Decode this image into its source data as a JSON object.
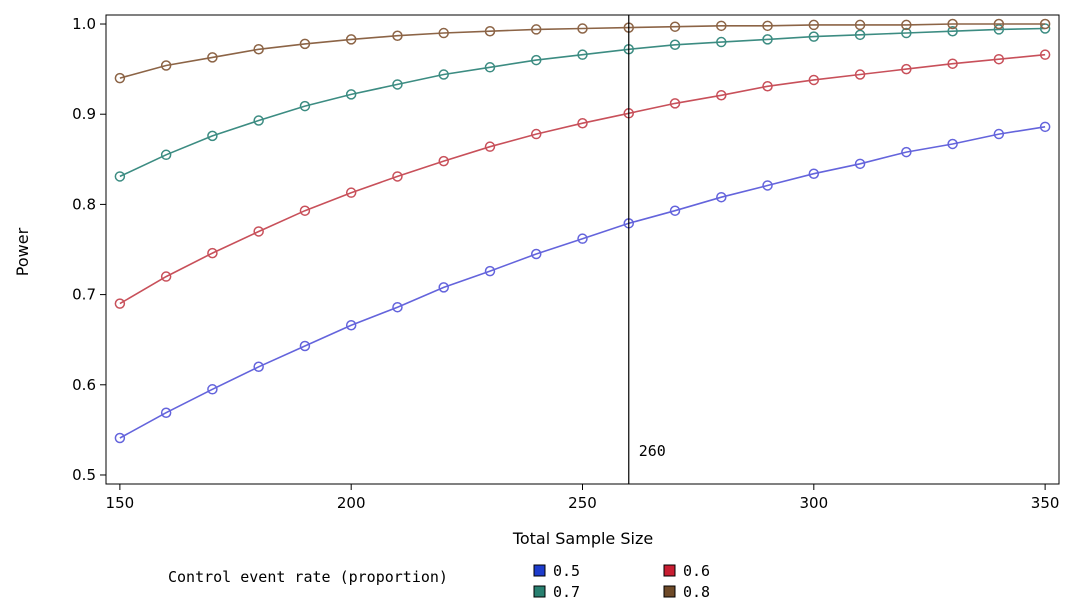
{
  "chart_data": {
    "type": "line",
    "xlabel": "Total Sample Size",
    "ylabel": "Power",
    "xlim": [
      147,
      353
    ],
    "ylim": [
      0.49,
      1.01
    ],
    "xticks": [
      150,
      200,
      250,
      300,
      350
    ],
    "xtick_labels": [
      "150",
      "200",
      "250",
      "300",
      "350"
    ],
    "yticks": [
      0.5,
      0.6,
      0.7,
      0.8,
      0.9,
      1.0
    ],
    "ytick_labels": [
      "0.5",
      "0.6",
      "0.7",
      "0.8",
      "0.9",
      "1.0"
    ],
    "grid": false,
    "legend": {
      "title": "Control event rate (proportion)",
      "placement": "bottom"
    },
    "reference_line": {
      "x": 260,
      "label": "260"
    },
    "x": [
      150,
      160,
      170,
      180,
      190,
      200,
      210,
      220,
      230,
      240,
      250,
      260,
      270,
      280,
      290,
      300,
      310,
      320,
      330,
      340,
      350
    ],
    "series": [
      {
        "name": "0.5",
        "color": "#6464dc",
        "swatch": "#1e3ccc",
        "values": [
          0.541,
          0.569,
          0.595,
          0.62,
          0.643,
          0.666,
          0.686,
          0.708,
          0.726,
          0.745,
          0.762,
          0.779,
          0.793,
          0.808,
          0.821,
          0.834,
          0.845,
          0.858,
          0.867,
          0.878,
          0.886
        ]
      },
      {
        "name": "0.6",
        "color": "#c8505a",
        "swatch": "#c81e32",
        "values": [
          0.69,
          0.72,
          0.746,
          0.77,
          0.793,
          0.813,
          0.831,
          0.848,
          0.864,
          0.878,
          0.89,
          0.901,
          0.912,
          0.921,
          0.931,
          0.938,
          0.944,
          0.95,
          0.956,
          0.961,
          0.966
        ]
      },
      {
        "name": "0.7",
        "color": "#3c8c82",
        "swatch": "#288070",
        "values": [
          0.831,
          0.855,
          0.876,
          0.893,
          0.909,
          0.922,
          0.933,
          0.944,
          0.952,
          0.96,
          0.966,
          0.972,
          0.977,
          0.98,
          0.983,
          0.986,
          0.988,
          0.99,
          0.992,
          0.994,
          0.995
        ]
      },
      {
        "name": "0.8",
        "color": "#8c6446",
        "swatch": "#6e4a28",
        "values": [
          0.94,
          0.954,
          0.963,
          0.972,
          0.978,
          0.983,
          0.987,
          0.99,
          0.992,
          0.994,
          0.995,
          0.996,
          0.997,
          0.998,
          0.998,
          0.999,
          0.999,
          0.999,
          1.0,
          1.0,
          1.0
        ]
      }
    ]
  }
}
